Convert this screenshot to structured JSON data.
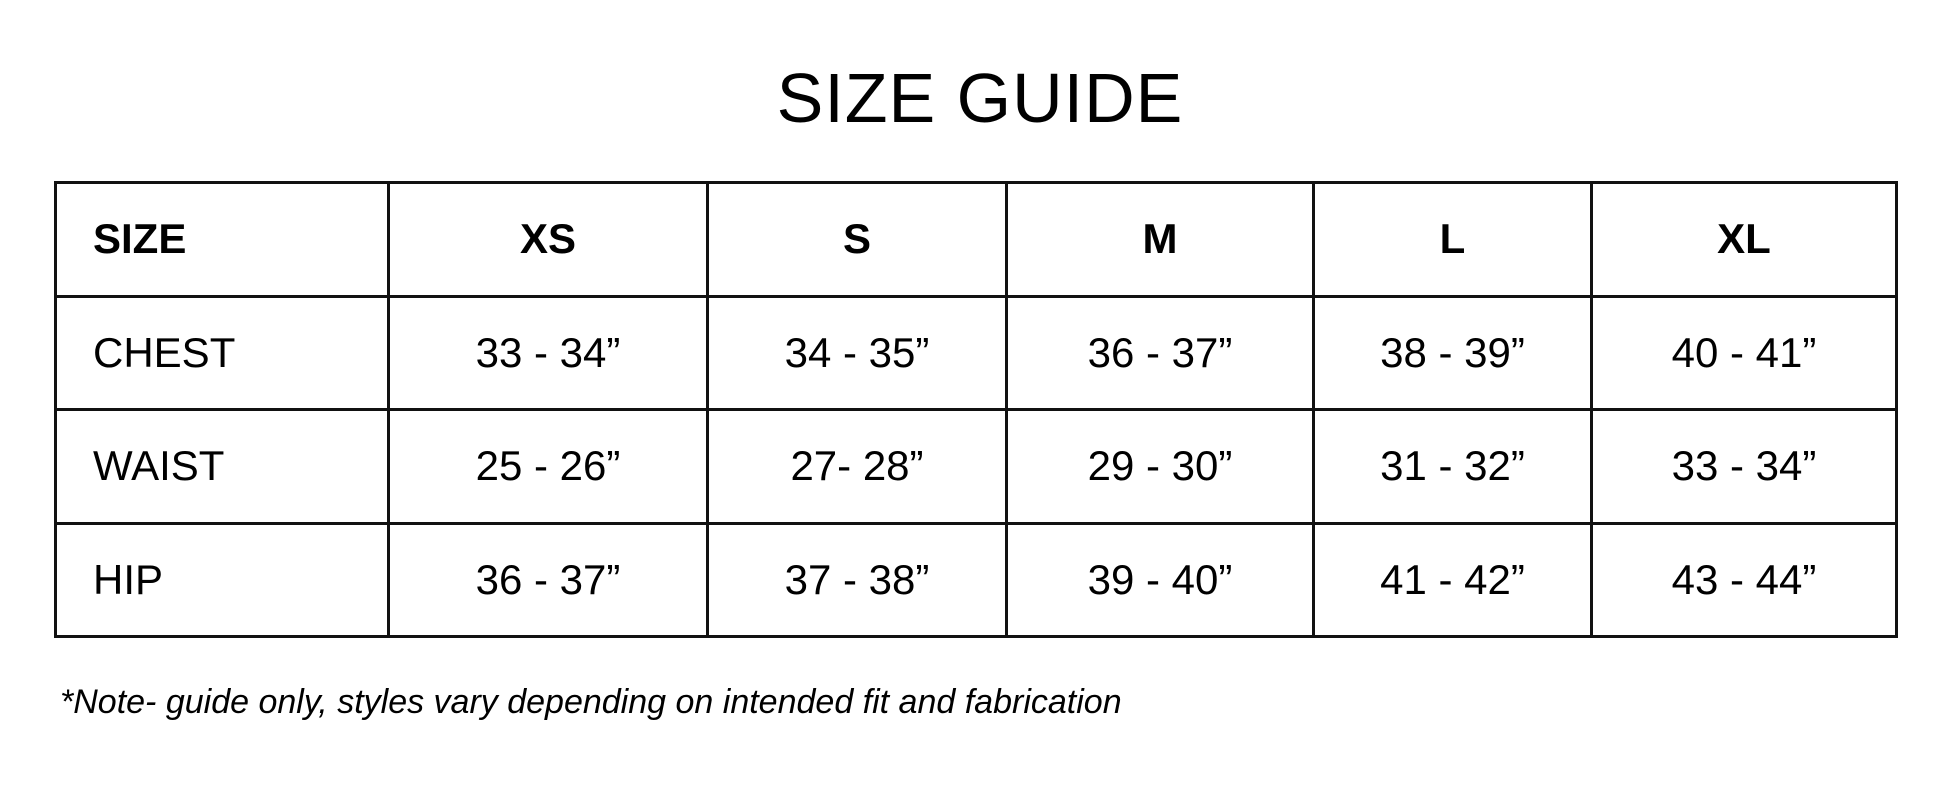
{
  "title": "SIZE GUIDE",
  "table": {
    "header": [
      "SIZE",
      "XS",
      "S",
      "M",
      "L",
      "XL"
    ],
    "rows": [
      {
        "label": "CHEST",
        "values": [
          "33 - 34”",
          "34 - 35”",
          "36 - 37”",
          "38 - 39”",
          "40 - 41”"
        ]
      },
      {
        "label": "WAIST",
        "values": [
          "25 - 26”",
          "27- 28”",
          "29 - 30”",
          "31 - 32”",
          "33 - 34”"
        ]
      },
      {
        "label": "HIP",
        "values": [
          "36 - 37”",
          "37 - 38”",
          "39 - 40”",
          "41 - 42”",
          "43 - 44”"
        ]
      }
    ]
  },
  "note": "*Note- guide only, styles vary depending on intended fit and fabrication"
}
